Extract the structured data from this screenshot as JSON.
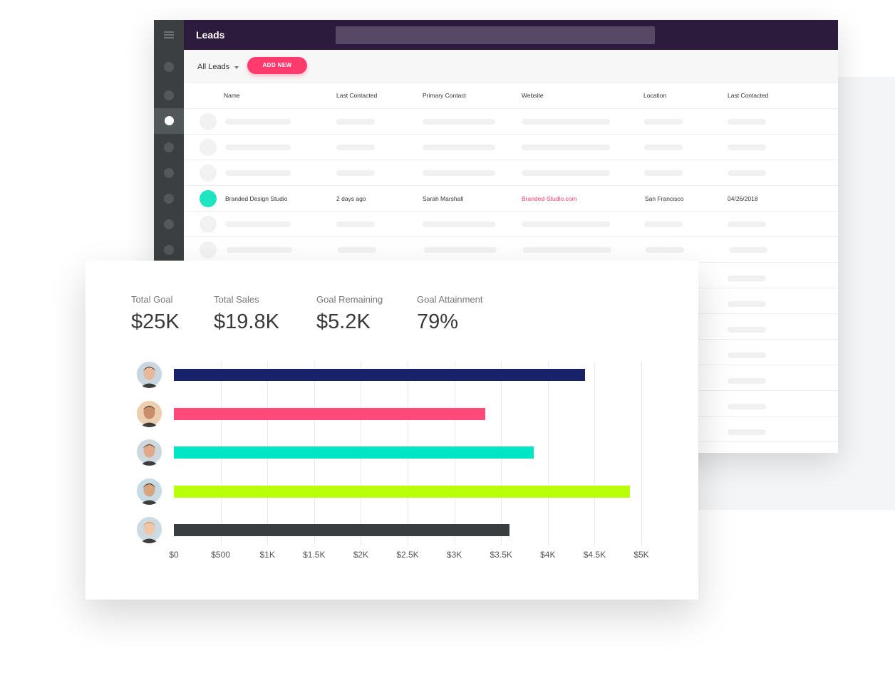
{
  "leads": {
    "title": "Leads",
    "filter_label": "All Leads",
    "add_new_label": "ADD NEW",
    "columns": [
      "Name",
      "Last Contacted",
      "Primary Contact",
      "Website",
      "Location",
      "Last Contacted"
    ],
    "highlighted_row": {
      "name": "Branded Design Studio",
      "last_contacted": "2 days ago",
      "primary_contact": "Sarah Marshall",
      "website": "Branded-Studio.com",
      "location": "San Francisco",
      "date": "04/26/2018"
    }
  },
  "summary": {
    "total_goal_label": "Total Goal",
    "total_goal_value": "$25K",
    "total_sales_label": "Total Sales",
    "total_sales_value": "$19.8K",
    "goal_remaining_label": "Goal Remaining",
    "goal_remaining_value": "$5.2K",
    "goal_attainment_label": "Goal Attainment",
    "goal_attainment_value": "79%"
  },
  "chart_data": {
    "type": "bar",
    "orientation": "horizontal",
    "categories": [
      "person-1",
      "person-2",
      "person-3",
      "person-4",
      "person-5"
    ],
    "values": [
      4400,
      3330,
      3850,
      4880,
      3590
    ],
    "colors": [
      "#17226a",
      "#ff4a79",
      "#00e5c4",
      "#baff0a",
      "#3a3d3f"
    ],
    "xlim": [
      0,
      5000
    ],
    "x_ticks": [
      "$0",
      "$500",
      "$1K",
      "$1.5K",
      "$2K",
      "$2.5K",
      "$3K",
      "$3.5K",
      "$4K",
      "$4.5K",
      "$5K"
    ],
    "grid": true,
    "title": "",
    "xlabel": "",
    "ylabel": ""
  },
  "colors": {
    "topbar": "#2d1b3d",
    "sidebar": "#3b3f41",
    "accent": "#ff3b6e",
    "teal": "#1de5c2"
  },
  "icons": {
    "menu": "menu-icon",
    "dropdown": "caret-down-icon"
  }
}
